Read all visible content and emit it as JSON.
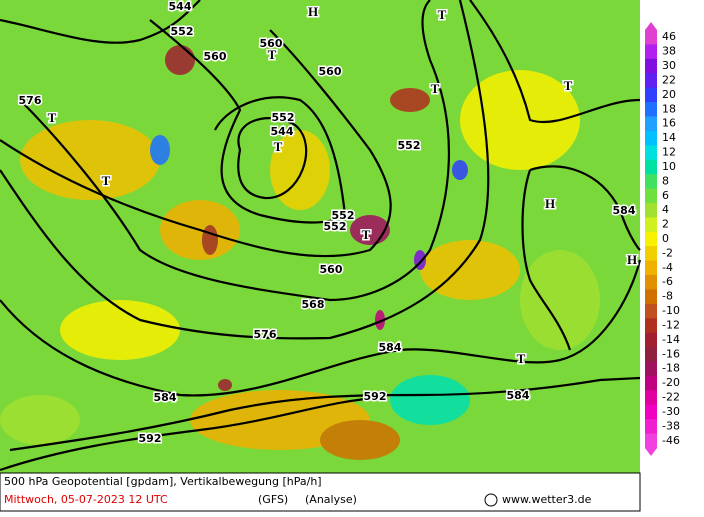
{
  "map": {
    "contour_labels": [
      "552",
      "552",
      "552",
      "552",
      "552",
      "560",
      "560",
      "560",
      "560",
      "544",
      "544",
      "576",
      "576",
      "568",
      "584",
      "584",
      "584",
      "584",
      "592",
      "592"
    ],
    "pressure_centers": [
      "T",
      "T",
      "T",
      "T",
      "T",
      "T",
      "T",
      "T",
      "T",
      "H",
      "H",
      "H"
    ]
  },
  "legend": {
    "labels": [
      46,
      38,
      30,
      22,
      20,
      18,
      16,
      14,
      12,
      10,
      8,
      6,
      4,
      2,
      0,
      -2,
      -4,
      -6,
      -8,
      -10,
      -12,
      -14,
      -16,
      -18,
      -20,
      -22,
      -30,
      -38,
      -46
    ],
    "colors": [
      "#e040d0",
      "#b020f0",
      "#8010e0",
      "#6020f0",
      "#3040ff",
      "#2070ff",
      "#20a0ff",
      "#00c0ff",
      "#00e0e0",
      "#00e0a0",
      "#40e060",
      "#70e040",
      "#a0e030",
      "#d0f020",
      "#f8f000",
      "#f0d000",
      "#f0b000",
      "#e09000",
      "#d07000",
      "#c05020",
      "#b03020",
      "#a02030",
      "#902040",
      "#a01060",
      "#c00080",
      "#e000a0",
      "#f000c0",
      "#f020d0",
      "#f040e0"
    ]
  },
  "footer": {
    "title": "500 hPa Geopotential [gpdam], Vertikalbewegung [hPa/h]",
    "date": "Mittwoch, 05-07-2023  12 UTC",
    "model": "(GFS)",
    "run": "(Analyse)",
    "site": "www.wetter3.de"
  }
}
